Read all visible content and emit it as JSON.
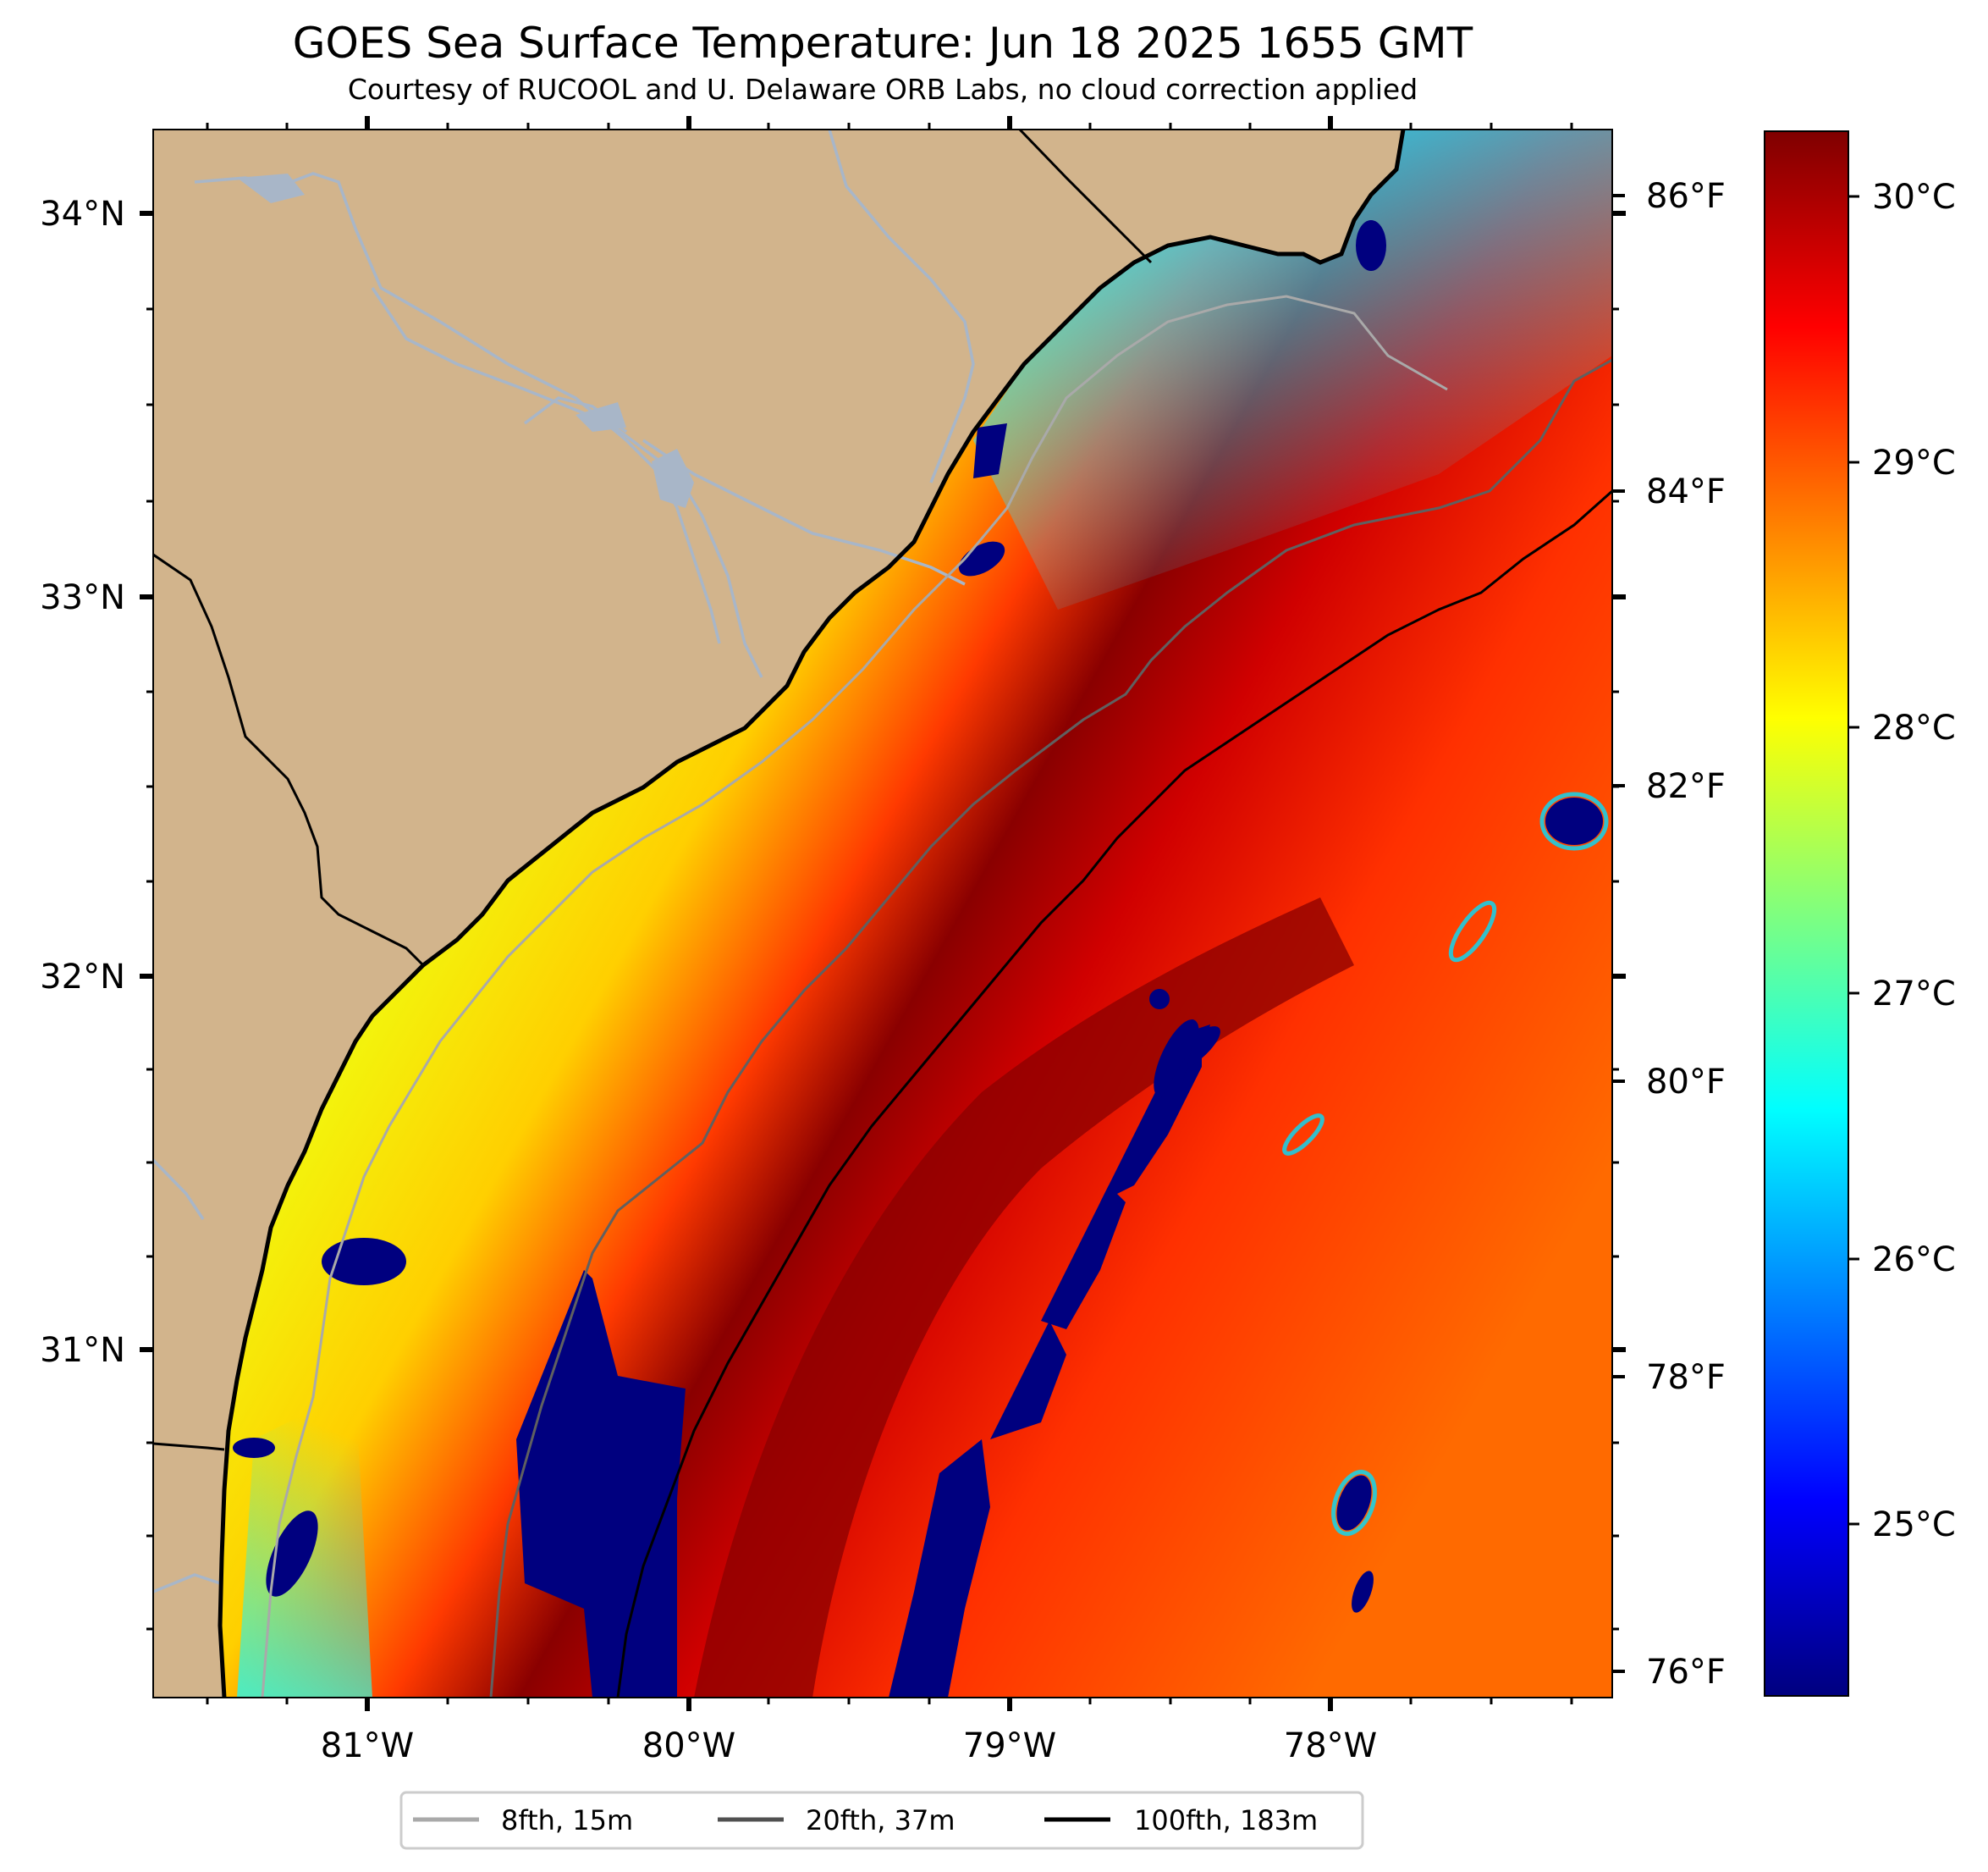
{
  "title": "GOES Sea Surface Temperature: Jun 18 2025 1655 GMT",
  "subtitle": "Courtesy of RUCOOL and U. Delaware ORB Labs, no cloud correction applied",
  "map": {
    "lon_range": [
      -81.67,
      -77.13
    ],
    "lat_range": [
      30.09,
      34.22
    ],
    "land_color": "#d2b48c",
    "ocean_colormap": "jet",
    "x_ticks": [
      "81°W",
      "80°W",
      "79°W",
      "78°W"
    ],
    "y_ticks": [
      "34°N",
      "33°N",
      "32°N",
      "31°N"
    ],
    "fahrenheit_ticks": [
      "86°F",
      "84°F",
      "82°F",
      "80°F",
      "78°F",
      "76°F"
    ]
  },
  "colorbar": {
    "min_c": 24.4,
    "max_c": 30.3,
    "ticks": [
      "30°C",
      "29°C",
      "28°C",
      "27°C",
      "26°C",
      "25°C"
    ],
    "colors": [
      "#00007f",
      "#0000ff",
      "#007fff",
      "#00ffff",
      "#7fff7f",
      "#ffff00",
      "#ff7f00",
      "#ff0000",
      "#7f0000"
    ]
  },
  "legend": {
    "items": [
      {
        "label": "8fth, 15m",
        "color": "#a9a9a9"
      },
      {
        "label": "20fth, 37m",
        "color": "#505050"
      },
      {
        "label": "100fth, 183m",
        "color": "#000000"
      }
    ]
  }
}
